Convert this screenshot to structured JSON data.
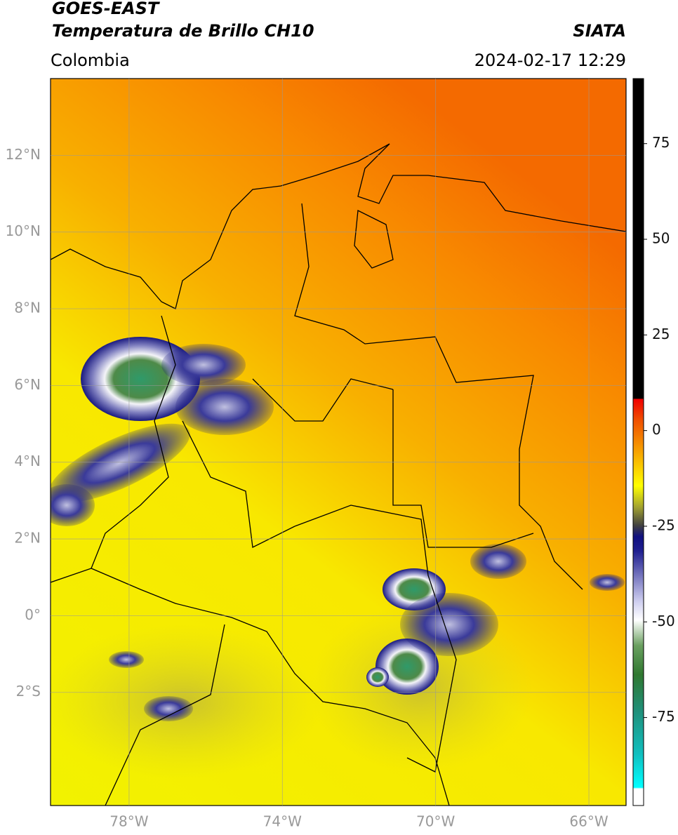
{
  "header": {
    "title": "GOES-EAST",
    "subtitle": "Temperatura de Brillo CH10",
    "region": "Colombia",
    "source": "SIATA",
    "datetime": "2024-02-17 12:29"
  },
  "map": {
    "xlim": [
      -80.05,
      -65.03
    ],
    "ylim": [
      -4.95,
      14.0
    ],
    "xticks": [
      {
        "value": -78,
        "label": "78°W"
      },
      {
        "value": -74,
        "label": "74°W"
      },
      {
        "value": -70,
        "label": "70°W"
      },
      {
        "value": -66,
        "label": "66°W"
      }
    ],
    "yticks": [
      {
        "value": 12,
        "label": "12°N"
      },
      {
        "value": 10,
        "label": "10°N"
      },
      {
        "value": 8,
        "label": "8°N"
      },
      {
        "value": 6,
        "label": "6°N"
      },
      {
        "value": 4,
        "label": "4°N"
      },
      {
        "value": 2,
        "label": "2°N"
      },
      {
        "value": 0,
        "label": "0°"
      },
      {
        "value": -2,
        "label": "2°S"
      }
    ],
    "grid": true
  },
  "colorbar": {
    "clim": [
      -98,
      92
    ],
    "ticks": [
      75,
      50,
      25,
      0,
      -25,
      -50,
      -75
    ]
  }
}
